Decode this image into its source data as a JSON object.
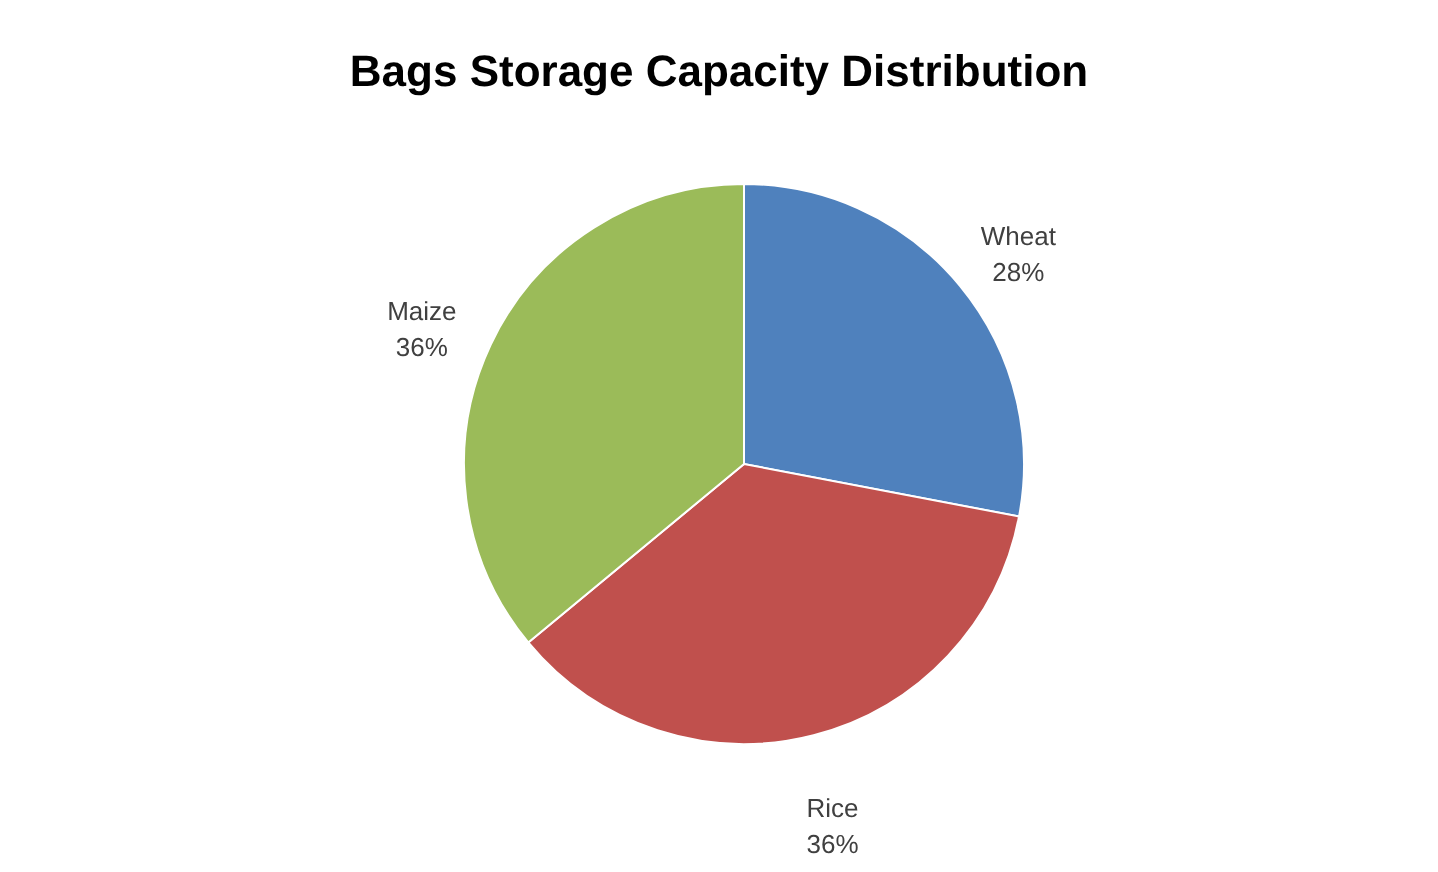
{
  "chart_data": {
    "type": "pie",
    "title": "Bags Storage Capacity Distribution",
    "categories": [
      "Wheat",
      "Rice",
      "Maize"
    ],
    "values": [
      28,
      36,
      36
    ],
    "colors": [
      "#4f81bd",
      "#c0504d",
      "#9bbb59"
    ],
    "value_labels": [
      "28%",
      "36%",
      "36%"
    ],
    "legend": false
  }
}
